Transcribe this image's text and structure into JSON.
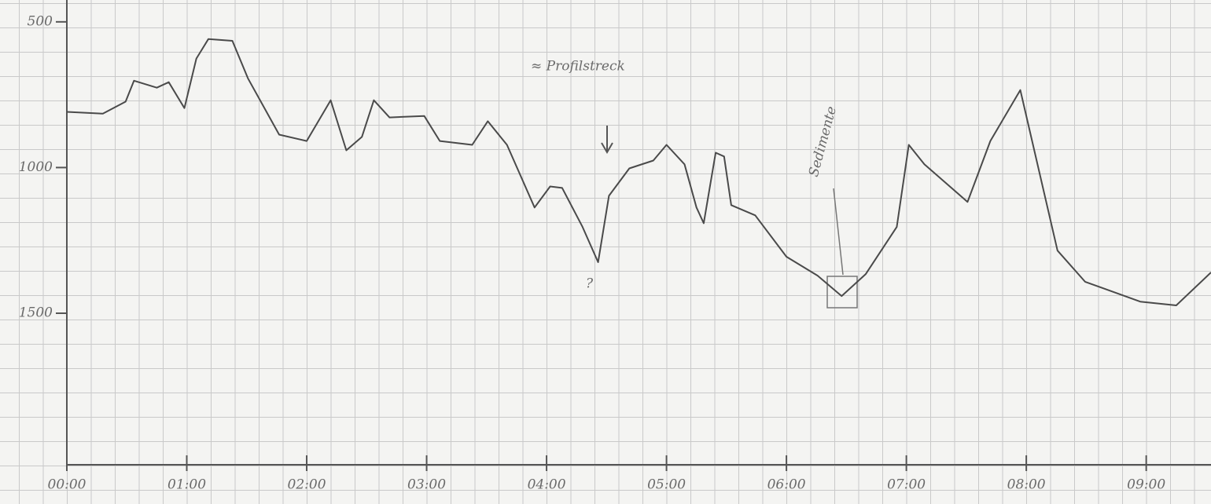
{
  "chart_data": {
    "type": "line",
    "inverted_y": true,
    "annotations": [
      "≈ Profilstreck",
      "Sedimente",
      "?"
    ],
    "x": [
      0,
      0.3,
      0.49,
      0.56,
      0.75,
      0.85,
      0.98,
      1.08,
      1.18,
      1.38,
      1.51,
      1.77,
      2.0,
      2.2,
      2.33,
      2.46,
      2.56,
      2.69,
      2.98,
      3.11,
      3.38,
      3.51,
      3.67,
      3.9,
      4.03,
      4.13,
      4.3,
      4.43,
      4.52,
      4.69,
      4.89,
      5.0,
      5.15,
      5.25,
      5.31,
      5.41,
      5.48,
      5.54,
      5.74,
      6.0,
      6.26,
      6.46,
      6.66,
      6.92,
      7.02,
      7.15,
      7.51,
      7.7,
      7.95,
      8.26,
      8.49,
      8.95,
      9.25,
      9.54
    ],
    "values": [
      809,
      815,
      774,
      702,
      726,
      707,
      796,
      626,
      559,
      565,
      694,
      887,
      909,
      769,
      941,
      895,
      769,
      828,
      823,
      909,
      922,
      841,
      922,
      1137,
      1065,
      1070,
      1204,
      1325,
      1097,
      1003,
      976,
      922,
      989,
      1137,
      1191,
      949,
      962,
      1129,
      1164,
      1306,
      1371,
      1441,
      1366,
      1204,
      922,
      989,
      1118,
      909,
      734,
      1285,
      1392,
      1460,
      1473,
      1360
    ],
    "color": "#4a4a4a",
    "xlim": [
      0,
      9.54
    ],
    "ylim": [
      2020,
      425
    ],
    "xticks": [
      {
        "value": 0,
        "label": "00:00"
      },
      {
        "value": 1,
        "label": "01:00"
      },
      {
        "value": 2,
        "label": "02:00"
      },
      {
        "value": 3,
        "label": "03:00"
      },
      {
        "value": 4,
        "label": "04:00"
      },
      {
        "value": 5,
        "label": "05:00"
      },
      {
        "value": 6,
        "label": "06:00"
      },
      {
        "value": 7,
        "label": "07:00"
      },
      {
        "value": 8,
        "label": "08:00"
      },
      {
        "value": 9,
        "label": "09:00"
      }
    ],
    "yticks": [
      500,
      1000,
      1500
    ]
  }
}
